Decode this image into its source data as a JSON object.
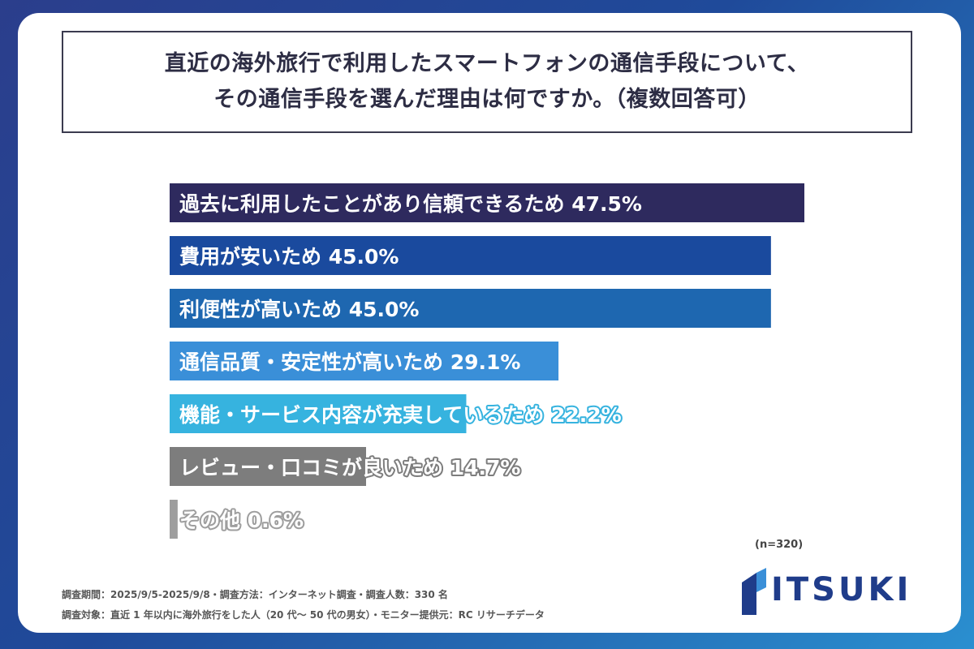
{
  "title": {
    "line1": "直近の海外旅行で利用したスマートフォンの通信手段について、",
    "line2": "その通信手段を選んだ理由は何ですか。（複数回答可）"
  },
  "chart_data": {
    "type": "bar",
    "orientation": "horizontal",
    "xlim": [
      0,
      50
    ],
    "categories": [
      "過去に利用したことがあり信頼できるため",
      "費用が安いため",
      "利便性が高いため",
      "通信品質・安定性が高いため",
      "機能・サービス内容が充実しているため",
      "レビュー・口コミが良いため",
      "その他"
    ],
    "values": [
      47.5,
      45.0,
      45.0,
      29.1,
      22.2,
      14.7,
      0.6
    ],
    "value_labels": [
      "47.5%",
      "45.0%",
      "45.0%",
      "29.1%",
      "22.2%",
      "14.7%",
      "0.6%"
    ],
    "bar_colors": [
      "#2e2a5e",
      "#1a4a9e",
      "#1e67b0",
      "#3a8fd8",
      "#36b3df",
      "#7d7d7d",
      "#9e9e9e"
    ],
    "label_outline_colors": [
      "#2e2a5e",
      "#1a4a9e",
      "#1e67b0",
      "#3a8fd8",
      "#36b3df",
      "#7d7d7d",
      "#9e9e9e"
    ]
  },
  "n_note": "(n=320)",
  "footnotes": {
    "line1": "調査期間：2025/9/5-2025/9/8・調査方法：インターネット調査・調査人数：330 名",
    "line2": "調査対象：直近 1 年以内に海外旅行をした人（20 代～ 50 代の男女）・モニター提供元：RC リサーチデータ"
  },
  "logo": {
    "text": "ITSUKI",
    "color": "#1f3c8a"
  }
}
